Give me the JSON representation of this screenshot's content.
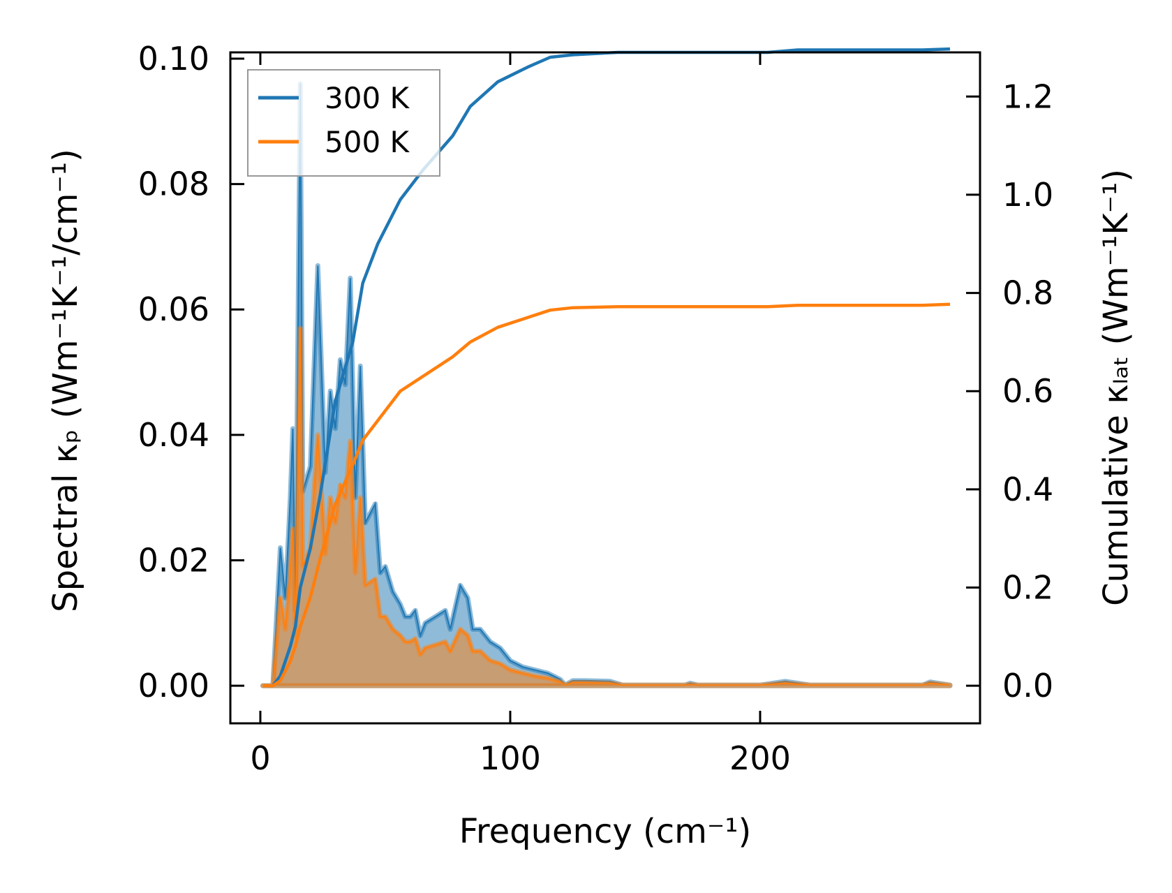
{
  "chart_data": {
    "type": "line",
    "title": "",
    "xlabel": "Frequency (cm⁻¹)",
    "ylabel": "Spectral κₚ (Wm⁻¹K⁻¹/cm⁻¹)",
    "y2label": "Cumulative κₗₐₜ (Wm⁻¹K⁻¹)",
    "xlim": [
      -12,
      288
    ],
    "ylim": [
      -0.006,
      0.101
    ],
    "y2lim": [
      -0.0766,
      1.29
    ],
    "xticks": [
      "0",
      "100",
      "200"
    ],
    "xtick_values": [
      0,
      100,
      200
    ],
    "yticks": [
      "0.00",
      "0.02",
      "0.04",
      "0.06",
      "0.08",
      "0.10"
    ],
    "ytick_values": [
      0,
      0.02,
      0.04,
      0.06,
      0.08,
      0.1
    ],
    "y2ticks": [
      "0.0",
      "0.2",
      "0.4",
      "0.6",
      "0.8",
      "1.0",
      "1.2"
    ],
    "y2tick_values": [
      0,
      0.2,
      0.4,
      0.6,
      0.8,
      1.0,
      1.2
    ],
    "legend_position": "top-left",
    "colors": {
      "300 K": "#1f77b4",
      "500 K": "#ff7f0e"
    },
    "spectral": [
      {
        "name": "300 K",
        "x": [
          1,
          5,
          8,
          10,
          12,
          13,
          14,
          16,
          17,
          20,
          23,
          26,
          28,
          30,
          32,
          34,
          36,
          38,
          40,
          42,
          46,
          48,
          50,
          53,
          56,
          58,
          60,
          62,
          64,
          66,
          70,
          74,
          76,
          80,
          83,
          85,
          88,
          92,
          96,
          100,
          105,
          110,
          115,
          120,
          122,
          125,
          130,
          140,
          145,
          170,
          172,
          175,
          200,
          210,
          220,
          265,
          268,
          276
        ],
        "y": [
          0,
          0,
          0.022,
          0.014,
          0.03,
          0.041,
          0.012,
          0.096,
          0.031,
          0.035,
          0.067,
          0.034,
          0.047,
          0.041,
          0.052,
          0.048,
          0.065,
          0.03,
          0.051,
          0.026,
          0.029,
          0.018,
          0.019,
          0.015,
          0.013,
          0.011,
          0.011,
          0.012,
          0.008,
          0.01,
          0.011,
          0.012,
          0.009,
          0.016,
          0.014,
          0.009,
          0.009,
          0.007,
          0.006,
          0.004,
          0.003,
          0.0025,
          0.002,
          0.001,
          0.0001,
          0.0008,
          0.0008,
          0.0007,
          0.0001,
          0.0001,
          0.0004,
          0.0001,
          0.0001,
          0.0007,
          0.0001,
          0.0001,
          0.0006,
          0.0001
        ]
      },
      {
        "name": "500 K",
        "x": [
          1,
          5,
          8,
          10,
          12,
          13,
          14,
          16,
          17,
          20,
          23,
          26,
          28,
          30,
          32,
          34,
          36,
          38,
          40,
          42,
          46,
          48,
          50,
          53,
          56,
          58,
          60,
          62,
          64,
          66,
          70,
          74,
          76,
          80,
          83,
          85,
          88,
          92,
          96,
          100,
          105,
          110,
          115,
          120,
          122,
          125,
          130,
          140,
          145,
          170,
          172,
          175,
          200,
          210,
          220,
          265,
          268,
          276
        ],
        "y": [
          0,
          0,
          0.014,
          0.009,
          0.018,
          0.025,
          0.008,
          0.057,
          0.019,
          0.022,
          0.04,
          0.021,
          0.03,
          0.026,
          0.032,
          0.03,
          0.039,
          0.018,
          0.03,
          0.016,
          0.017,
          0.011,
          0.011,
          0.009,
          0.008,
          0.007,
          0.007,
          0.0075,
          0.005,
          0.006,
          0.0065,
          0.007,
          0.0055,
          0.009,
          0.008,
          0.0055,
          0.0055,
          0.004,
          0.0035,
          0.0025,
          0.002,
          0.0015,
          0.0012,
          0.0006,
          0.0001,
          0.0005,
          0.0005,
          0.0004,
          0.0001,
          0.0001,
          0.0002,
          0.0001,
          0.0001,
          0.0004,
          0.0001,
          0.0001,
          0.0004,
          0.0001
        ]
      }
    ],
    "cumulative": [
      {
        "name": "300 K",
        "x": [
          1,
          5,
          8,
          12,
          14,
          16,
          20,
          24,
          30,
          37,
          41,
          47,
          56,
          65,
          77,
          84,
          95,
          107,
          116,
          125,
          143,
          203,
          215,
          265,
          276
        ],
        "y": [
          0,
          0,
          0.02,
          0.08,
          0.12,
          0.2,
          0.28,
          0.39,
          0.58,
          0.7,
          0.82,
          0.9,
          0.99,
          1.05,
          1.12,
          1.18,
          1.23,
          1.26,
          1.28,
          1.285,
          1.29,
          1.29,
          1.295,
          1.295,
          1.297
        ]
      },
      {
        "name": "500 K",
        "x": [
          1,
          5,
          8,
          12,
          14,
          16,
          20,
          24,
          30,
          37,
          41,
          47,
          56,
          65,
          77,
          84,
          95,
          107,
          116,
          125,
          143,
          203,
          215,
          265,
          276
        ],
        "y": [
          0,
          0,
          0.01,
          0.05,
          0.08,
          0.12,
          0.18,
          0.26,
          0.37,
          0.45,
          0.5,
          0.54,
          0.6,
          0.63,
          0.67,
          0.7,
          0.73,
          0.75,
          0.765,
          0.77,
          0.772,
          0.772,
          0.775,
          0.775,
          0.777
        ]
      }
    ]
  }
}
